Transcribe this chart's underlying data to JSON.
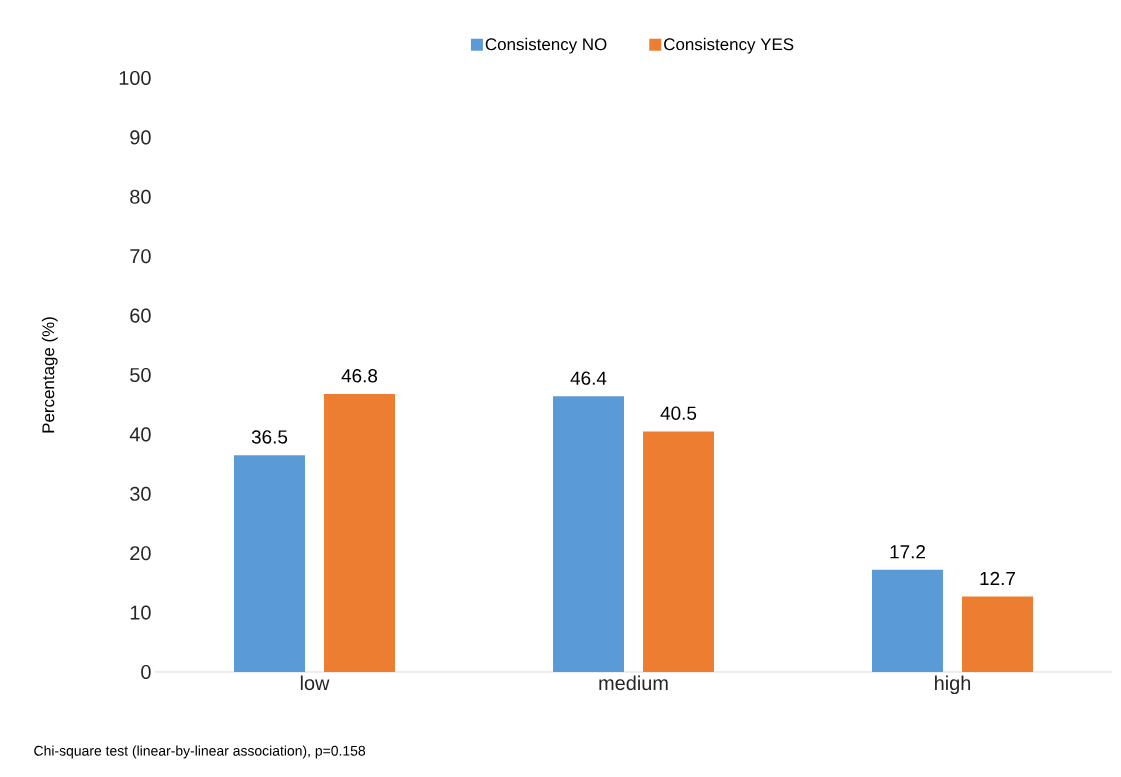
{
  "chart_data": {
    "type": "bar",
    "categories": [
      "low",
      "medium",
      "high"
    ],
    "series": [
      {
        "name": "Consistency NO",
        "color": "#5b9bd5",
        "values": [
          36.5,
          46.4,
          17.2
        ]
      },
      {
        "name": "Consistency YES",
        "color": "#ed7d31",
        "values": [
          46.8,
          40.5,
          12.7
        ]
      }
    ],
    "ylabel": "Percentage (%)",
    "ylim": [
      0,
      100
    ],
    "yticks": [
      0,
      10,
      20,
      30,
      40,
      50,
      60,
      70,
      80,
      90,
      100
    ],
    "grid": false,
    "legend": "top",
    "data_labels": true,
    "annotations": [
      "Chi-square test (linear-by-linear association), p=0.158"
    ]
  }
}
